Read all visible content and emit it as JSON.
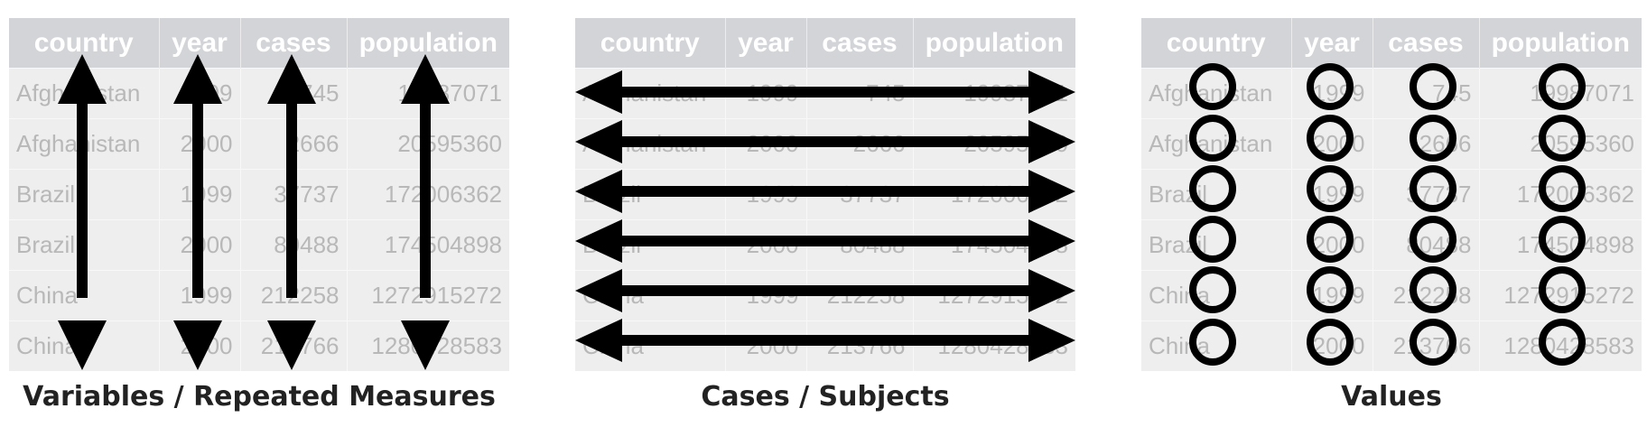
{
  "table": {
    "headers": [
      "country",
      "year",
      "cases",
      "population"
    ],
    "rows": [
      [
        "Afghanistan",
        "1999",
        "745",
        "19987071"
      ],
      [
        "Afghanistan",
        "2000",
        "2666",
        "20595360"
      ],
      [
        "Brazil",
        "1999",
        "37737",
        "172006362"
      ],
      [
        "Brazil",
        "2000",
        "80488",
        "174504898"
      ],
      [
        "China",
        "1999",
        "212258",
        "1272915272"
      ],
      [
        "China",
        "2000",
        "213766",
        "1280428583"
      ]
    ]
  },
  "panels": [
    {
      "id": "variables",
      "caption": "Variables / Repeated Measures",
      "overlay": "vertical-arrows"
    },
    {
      "id": "cases",
      "caption": "Cases / Subjects",
      "overlay": "horizontal-arrows"
    },
    {
      "id": "values",
      "caption": "Values",
      "overlay": "circles"
    }
  ],
  "colors": {
    "header_bg": "#d3d4d7",
    "cell_bg": "#edeeed",
    "cell_text": "#b8b8b8",
    "mark": "#000000",
    "caption": "#222222"
  }
}
